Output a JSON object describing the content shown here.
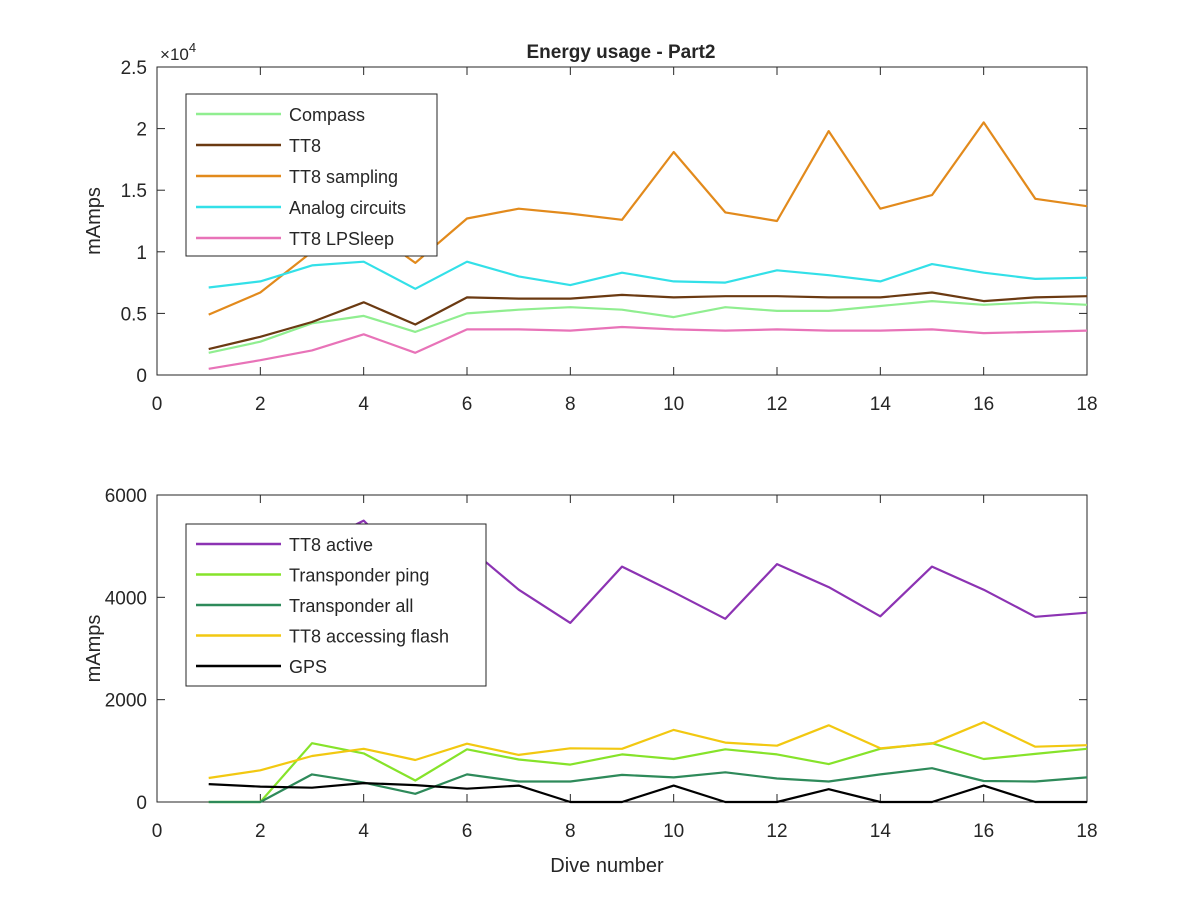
{
  "chart_data": [
    {
      "type": "line",
      "title": "Energy usage - Part2",
      "xlabel": "",
      "ylabel": "mAmps",
      "xlim": [
        0,
        18
      ],
      "ylim": [
        0,
        25000
      ],
      "x_ticks": [
        "0",
        "2",
        "4",
        "6",
        "8",
        "10",
        "12",
        "14",
        "16",
        "18"
      ],
      "y_ticks": [
        "0",
        "0.5",
        "1",
        "1.5",
        "2",
        "2.5"
      ],
      "y_exponent": "10",
      "y_exponent_power": "4",
      "y_exponent_prefix": "×",
      "legend_position": "top-left",
      "x": [
        1,
        2,
        3,
        4,
        5,
        6,
        7,
        8,
        9,
        10,
        11,
        12,
        13,
        14,
        15,
        16,
        17,
        18
      ],
      "series": [
        {
          "name": "Compass",
          "color": "#90ee90",
          "values": [
            1800,
            2700,
            4200,
            4800,
            3500,
            5000,
            5300,
            5500,
            5300,
            4700,
            5500,
            5200,
            5200,
            5600,
            6000,
            5700,
            5900,
            5700
          ]
        },
        {
          "name": "TT8",
          "color": "#6b3a12",
          "values": [
            2100,
            3100,
            4300,
            5900,
            4100,
            6300,
            6200,
            6200,
            6500,
            6300,
            6400,
            6400,
            6300,
            6300,
            6700,
            6000,
            6300,
            6400
          ]
        },
        {
          "name": "TT8 sampling",
          "color": "#e28a1c",
          "values": [
            4900,
            6700,
            10000,
            12100,
            9100,
            12700,
            13500,
            13100,
            12600,
            18100,
            13200,
            12500,
            19800,
            13500,
            14600,
            20500,
            14300,
            13700
          ]
        },
        {
          "name": "Analog circuits",
          "color": "#33e0e8",
          "values": [
            7100,
            7600,
            8900,
            9200,
            7000,
            9200,
            8000,
            7300,
            8300,
            7600,
            7500,
            8500,
            8100,
            7600,
            9000,
            8300,
            7800,
            7900
          ]
        },
        {
          "name": "TT8 LPSleep",
          "color": "#e873b8",
          "values": [
            500,
            1200,
            2000,
            3300,
            1800,
            3700,
            3700,
            3600,
            3900,
            3700,
            3600,
            3700,
            3600,
            3600,
            3700,
            3400,
            3500,
            3600
          ]
        }
      ]
    },
    {
      "type": "line",
      "title": "",
      "xlabel": "Dive number",
      "ylabel": "mAmps",
      "xlim": [
        0,
        18
      ],
      "ylim": [
        0,
        6000
      ],
      "x_ticks": [
        "0",
        "2",
        "4",
        "6",
        "8",
        "10",
        "12",
        "14",
        "16",
        "18"
      ],
      "y_ticks": [
        "0",
        "2000",
        "4000",
        "6000"
      ],
      "legend_position": "top-left",
      "x": [
        1,
        2,
        3,
        4,
        5,
        6,
        7,
        8,
        9,
        10,
        11,
        12,
        13,
        14,
        15,
        16,
        17,
        18
      ],
      "series": [
        {
          "name": "TT8 active",
          "color": "#8c33b3",
          "values": [
            3400,
            4200,
            5000,
            5500,
            4500,
            5000,
            4150,
            3500,
            4600,
            4100,
            3580,
            4650,
            4200,
            3630,
            4600,
            4150,
            3620,
            3700
          ]
        },
        {
          "name": "Transponder ping",
          "color": "#86e32a",
          "values": [
            0,
            0,
            1150,
            950,
            420,
            1030,
            830,
            730,
            930,
            840,
            1030,
            930,
            740,
            1040,
            1150,
            840,
            940,
            1040
          ]
        },
        {
          "name": "Transponder all",
          "color": "#2e8a5a",
          "values": [
            0,
            0,
            540,
            380,
            160,
            540,
            400,
            400,
            530,
            480,
            580,
            460,
            400,
            540,
            660,
            410,
            400,
            480
          ]
        },
        {
          "name": "TT8 accessing flash",
          "color": "#f2c811",
          "values": [
            470,
            620,
            900,
            1040,
            820,
            1140,
            920,
            1050,
            1040,
            1410,
            1160,
            1100,
            1500,
            1050,
            1140,
            1560,
            1080,
            1110
          ]
        },
        {
          "name": "GPS",
          "color": "#000000",
          "values": [
            350,
            300,
            280,
            370,
            330,
            260,
            320,
            0,
            0,
            320,
            0,
            0,
            250,
            0,
            0,
            320,
            0,
            0
          ]
        }
      ]
    }
  ]
}
